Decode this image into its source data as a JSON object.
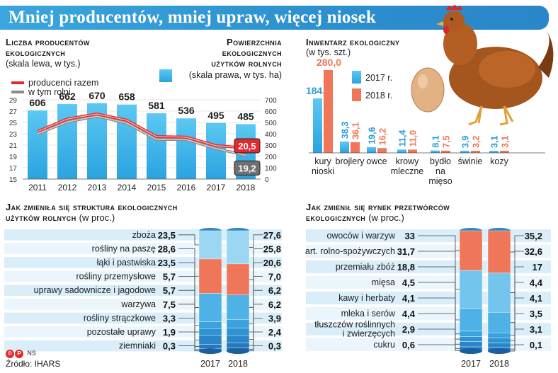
{
  "header": {
    "title": "Mniej producentów, mniej upraw, więcej niosek"
  },
  "colors": {
    "accent": "#2a9ad6",
    "light_blue": "#42b7ea",
    "dark_blue": "#1e78c2",
    "salmon": "#ef7658",
    "red_line": "#e3282e",
    "gray_line": "#8a8a8a"
  },
  "chart_data": [
    {
      "id": "producers",
      "type": "bar",
      "title_left": "Liczba producentów ekologicznych",
      "title_left_lines": [
        "Liczba producentów",
        "ekologicznych"
      ],
      "sub_left": "(skala lewa, w tys.)",
      "title_right_lines": [
        "Powierzchnia",
        "ekologicznych",
        "użytków rolnych"
      ],
      "sub_right": "(skala prawa, w tys. ha)",
      "legend": {
        "line1": "producenci razem",
        "line2": "w tym rolni"
      },
      "categories": [
        "2011",
        "2012",
        "2013",
        "2014",
        "2015",
        "2016",
        "2017",
        "2018"
      ],
      "area_values": [
        606,
        662,
        670,
        658,
        581,
        536,
        495,
        485
      ],
      "area_labels": [
        "606",
        "662",
        "670",
        "658",
        "581",
        "536",
        "495",
        "485"
      ],
      "producers_total": [
        23.4,
        25.6,
        26.5,
        25.4,
        22.5,
        22.4,
        20.9,
        20.5
      ],
      "producers_farm": [
        23.0,
        25.1,
        26.1,
        24.9,
        22.0,
        22.0,
        20.4,
        19.2
      ],
      "end_label_total": "20,5",
      "end_label_farm": "19,2",
      "ylim_left": [
        15,
        29
      ],
      "yticks_left": [
        "29",
        "27",
        "25",
        "23",
        "21",
        "19",
        "17",
        "15"
      ],
      "ylim_right": [
        0,
        700
      ],
      "yticks_right": [
        "700",
        "600",
        "500",
        "400",
        "300",
        "200",
        "100",
        "0"
      ]
    },
    {
      "id": "livestock",
      "type": "bar",
      "title": "Inwentarz ekologiczny",
      "subtitle": "(w tys. szt.)",
      "categories": [
        "kury nioski",
        "brojlery",
        "owce",
        "krowy mleczne",
        "bydło na mięso",
        "świnie",
        "kozy"
      ],
      "category_lines": [
        [
          "kury",
          "nioski"
        ],
        [
          "brojlery"
        ],
        [
          "owce"
        ],
        [
          "krowy",
          "mleczne"
        ],
        [
          "bydło",
          "na",
          "mięso"
        ],
        [
          "świnie"
        ],
        [
          "kozy"
        ]
      ],
      "series": [
        {
          "name": "2017 r.",
          "values": [
            184.2,
            38.3,
            19.6,
            11.4,
            8.1,
            3.9,
            3.1
          ],
          "labels": [
            "184,2",
            "38,3",
            "19,6",
            "11,4",
            "8,1",
            "3,9",
            "3,1"
          ]
        },
        {
          "name": "2018 r.",
          "values": [
            280.0,
            36.1,
            16.2,
            11.0,
            7.5,
            3.2,
            3.1
          ],
          "labels": [
            "280,0",
            "36,1",
            "16,2",
            "11,0",
            "7,5",
            "3,2",
            "3,1"
          ]
        }
      ]
    },
    {
      "id": "crop_structure",
      "type": "bar",
      "stacked": true,
      "title_lines": [
        "Jak zmieniła się struktura ekologicznych",
        "użytków rolnych"
      ],
      "unit": "(w proc.)",
      "categories": [
        "zboża",
        "rośliny na paszę",
        "łąki i pastwiska",
        "rośliny przemysłowe",
        "uprawy sadownicze i jagodowe",
        "warzywa",
        "rośliny strączkowe",
        "pozostałe uprawy",
        "ziemniaki"
      ],
      "series": [
        {
          "name": "2017",
          "values": [
            23.5,
            28.6,
            23.5,
            5.7,
            5.7,
            7.5,
            3.3,
            1.9,
            0.3
          ],
          "labels": [
            "23,5",
            "28,6",
            "23,5",
            "5,7",
            "5,7",
            "7,5",
            "3,3",
            "1,9",
            "0,3"
          ]
        },
        {
          "name": "2018",
          "values": [
            27.6,
            25.8,
            20.6,
            7.0,
            6.2,
            6.2,
            3.9,
            2.4,
            0.3
          ],
          "labels": [
            "27,6",
            "25,8",
            "20,6",
            "7,0",
            "6,2",
            "6,2",
            "3,9",
            "2,4",
            "0,3"
          ]
        }
      ]
    },
    {
      "id": "processors",
      "type": "bar",
      "stacked": true,
      "title_lines": [
        "Jak zmienił się rynek przetwórców",
        "ekologicznych"
      ],
      "unit": "(w proc.)",
      "categories": [
        "owoców i warzyw",
        "art. rolno-spożywczych",
        "przemiału zbóż",
        "mięsa",
        "kawy i herbaty",
        "mleka i serów",
        "tłuszczów roślinnych i zwierzęcych",
        "cukru"
      ],
      "category_lines": [
        [
          "owoców i warzyw"
        ],
        [
          "art. rolno-spożywczych"
        ],
        [
          "przemiału zbóż"
        ],
        [
          "mięsa"
        ],
        [
          "kawy i herbaty"
        ],
        [
          "mleka i serów"
        ],
        [
          "tłuszczów roślinnych",
          "i zwierzęcych"
        ],
        [
          "cukru"
        ]
      ],
      "series": [
        {
          "name": "2017",
          "values": [
            33,
            31.7,
            18.8,
            4.5,
            4.1,
            4.4,
            2.9,
            0.6
          ],
          "labels": [
            "33",
            "31,7",
            "18,8",
            "4,5",
            "4,1",
            "4,4",
            "2,9",
            "0,6"
          ]
        },
        {
          "name": "2018",
          "values": [
            35.2,
            32.6,
            17,
            4.4,
            4.1,
            3.5,
            3.1,
            0.1
          ],
          "labels": [
            "35,2",
            "32,6",
            "17",
            "4,4",
            "4,1",
            "3,5",
            "3,1",
            "0,1"
          ]
        }
      ]
    }
  ],
  "footer": {
    "credit": "NS",
    "source": "Źródło: IHARS",
    "logo_text": "©P"
  }
}
